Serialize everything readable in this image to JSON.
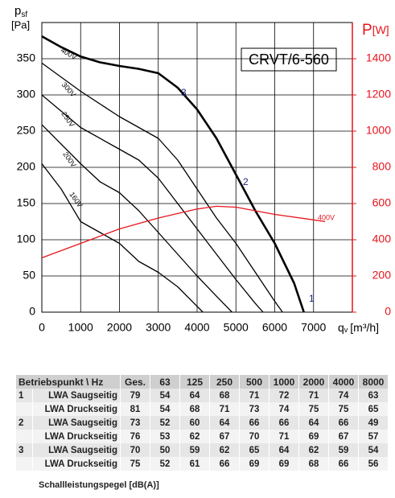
{
  "chart_data": {
    "type": "line",
    "title": "CRVT/6-560",
    "y_label": {
      "text": "p",
      "subscript": "sf",
      "unit": "[Pa]"
    },
    "y2_label": {
      "text": "P",
      "unit": "[W]"
    },
    "x_label": {
      "text": "q",
      "subscript": "v",
      "unit": "[m³/h]"
    },
    "xlim": [
      0,
      8000
    ],
    "xticks": [
      0,
      1000,
      2000,
      3000,
      4000,
      5000,
      6000,
      7000
    ],
    "ylim": [
      0,
      400
    ],
    "yticks": [
      0,
      50,
      100,
      150,
      200,
      250,
      300,
      350
    ],
    "y2lim": [
      0,
      1600
    ],
    "y2ticks": [
      0,
      200,
      400,
      600,
      800,
      1000,
      1200,
      1400
    ],
    "grid": true,
    "series": [
      {
        "name": "400V",
        "color": "#000000",
        "width": 2.6,
        "x": [
          0,
          500,
          1000,
          1500,
          2000,
          2500,
          3000,
          3500,
          4000,
          4500,
          5000,
          5500,
          6000,
          6500,
          6750
        ],
        "values": [
          381,
          366,
          353,
          345,
          340,
          336,
          330,
          310,
          280,
          240,
          190,
          140,
          95,
          40,
          0
        ]
      },
      {
        "name": "300V",
        "color": "#000000",
        "width": 1.3,
        "x": [
          0,
          1000,
          2000,
          3000,
          3500,
          4000,
          4500,
          5000,
          5500,
          6000,
          6200
        ],
        "values": [
          344,
          305,
          270,
          240,
          210,
          170,
          130,
          95,
          55,
          15,
          0
        ]
      },
      {
        "name": "250V",
        "color": "#000000",
        "width": 1.3,
        "x": [
          0,
          1000,
          2000,
          2500,
          3000,
          3500,
          4000,
          4500,
          5000,
          5500,
          5700
        ],
        "values": [
          300,
          255,
          225,
          210,
          185,
          150,
          115,
          80,
          45,
          12,
          0
        ]
      },
      {
        "name": "200V",
        "color": "#000000",
        "width": 1.3,
        "x": [
          0,
          1000,
          1500,
          2000,
          2500,
          3000,
          3500,
          4000,
          4500,
          4900
        ],
        "values": [
          259,
          205,
          180,
          165,
          140,
          110,
          80,
          50,
          22,
          0
        ]
      },
      {
        "name": "160V",
        "color": "#000000",
        "width": 1.3,
        "x": [
          0,
          500,
          1000,
          1500,
          2000,
          2500,
          3000,
          3500,
          4000,
          4150
        ],
        "values": [
          205,
          170,
          125,
          110,
          95,
          70,
          55,
          35,
          8,
          0
        ]
      },
      {
        "name": "400V",
        "color": "#e8141b",
        "width": 1.3,
        "axis": "y2",
        "x": [
          0,
          1000,
          2000,
          3000,
          4000,
          4500,
          5000,
          6000,
          7000,
          7300
        ],
        "values": [
          300,
          380,
          460,
          520,
          570,
          585,
          580,
          540,
          510,
          500
        ]
      }
    ],
    "annotations": [
      "1",
      "2",
      "3"
    ]
  },
  "table": {
    "header": [
      "Betriebspunkt \\ Hz",
      "Ges.",
      "63",
      "125",
      "250",
      "500",
      "1000",
      "2000",
      "4000",
      "8000"
    ],
    "groups": [
      {
        "point": "1",
        "rows": [
          {
            "label": "LWA Saugseitig",
            "values": [
              79,
              54,
              64,
              68,
              71,
              72,
              71,
              74,
              63
            ]
          },
          {
            "label": "LWA Druckseitig",
            "values": [
              81,
              54,
              68,
              71,
              73,
              74,
              75,
              75,
              65
            ]
          }
        ]
      },
      {
        "point": "2",
        "rows": [
          {
            "label": "LWA Saugseitig",
            "values": [
              73,
              52,
              60,
              64,
              66,
              66,
              64,
              66,
              49
            ]
          },
          {
            "label": "LWA Druckseitig",
            "values": [
              76,
              53,
              62,
              67,
              70,
              71,
              69,
              67,
              57
            ]
          }
        ]
      },
      {
        "point": "3",
        "rows": [
          {
            "label": "LWA Saugseitig",
            "values": [
              70,
              50,
              59,
              62,
              65,
              64,
              62,
              59,
              54
            ]
          },
          {
            "label": "LWA Druckseitig",
            "values": [
              75,
              52,
              61,
              66,
              69,
              69,
              68,
              66,
              56
            ]
          }
        ]
      }
    ],
    "footnote": "Schallleistungspegel [dB(A)]"
  }
}
